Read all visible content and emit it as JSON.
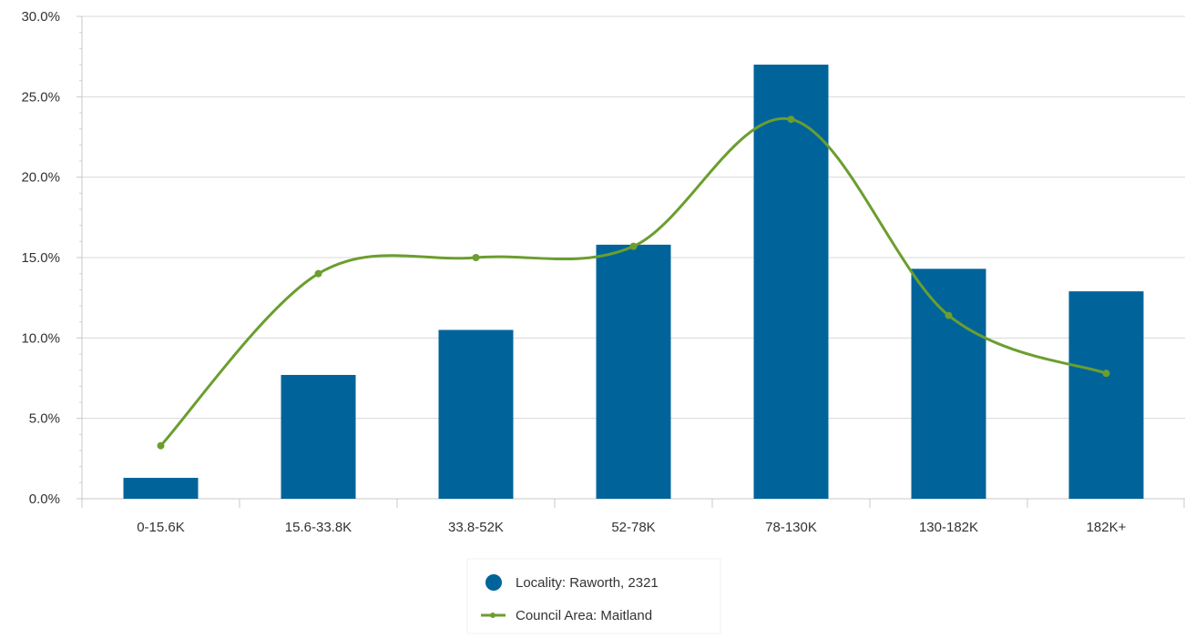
{
  "chart_data": {
    "type": "bar",
    "title": "",
    "xlabel": "",
    "ylabel": "",
    "categories": [
      "0-15.6K",
      "15.6-33.8K",
      "33.8-52K",
      "52-78K",
      "78-130K",
      "130-182K",
      "182K+"
    ],
    "ylim": [
      0,
      30
    ],
    "yticks": [
      "0.0%",
      "5.0%",
      "10.0%",
      "15.0%",
      "20.0%",
      "25.0%",
      "30.0%"
    ],
    "grid": true,
    "legend_position": "bottom-center",
    "series": [
      {
        "name": "Locality: Raworth, 2321",
        "type": "bar",
        "color": "#00649a",
        "values": [
          1.3,
          7.7,
          10.5,
          15.8,
          27.0,
          14.3,
          12.9
        ]
      },
      {
        "name": "Council Area: Maitland",
        "type": "line",
        "smooth": true,
        "color": "#6b9e2f",
        "values": [
          3.3,
          14.0,
          15.0,
          15.7,
          23.6,
          11.4,
          7.8
        ]
      }
    ]
  }
}
